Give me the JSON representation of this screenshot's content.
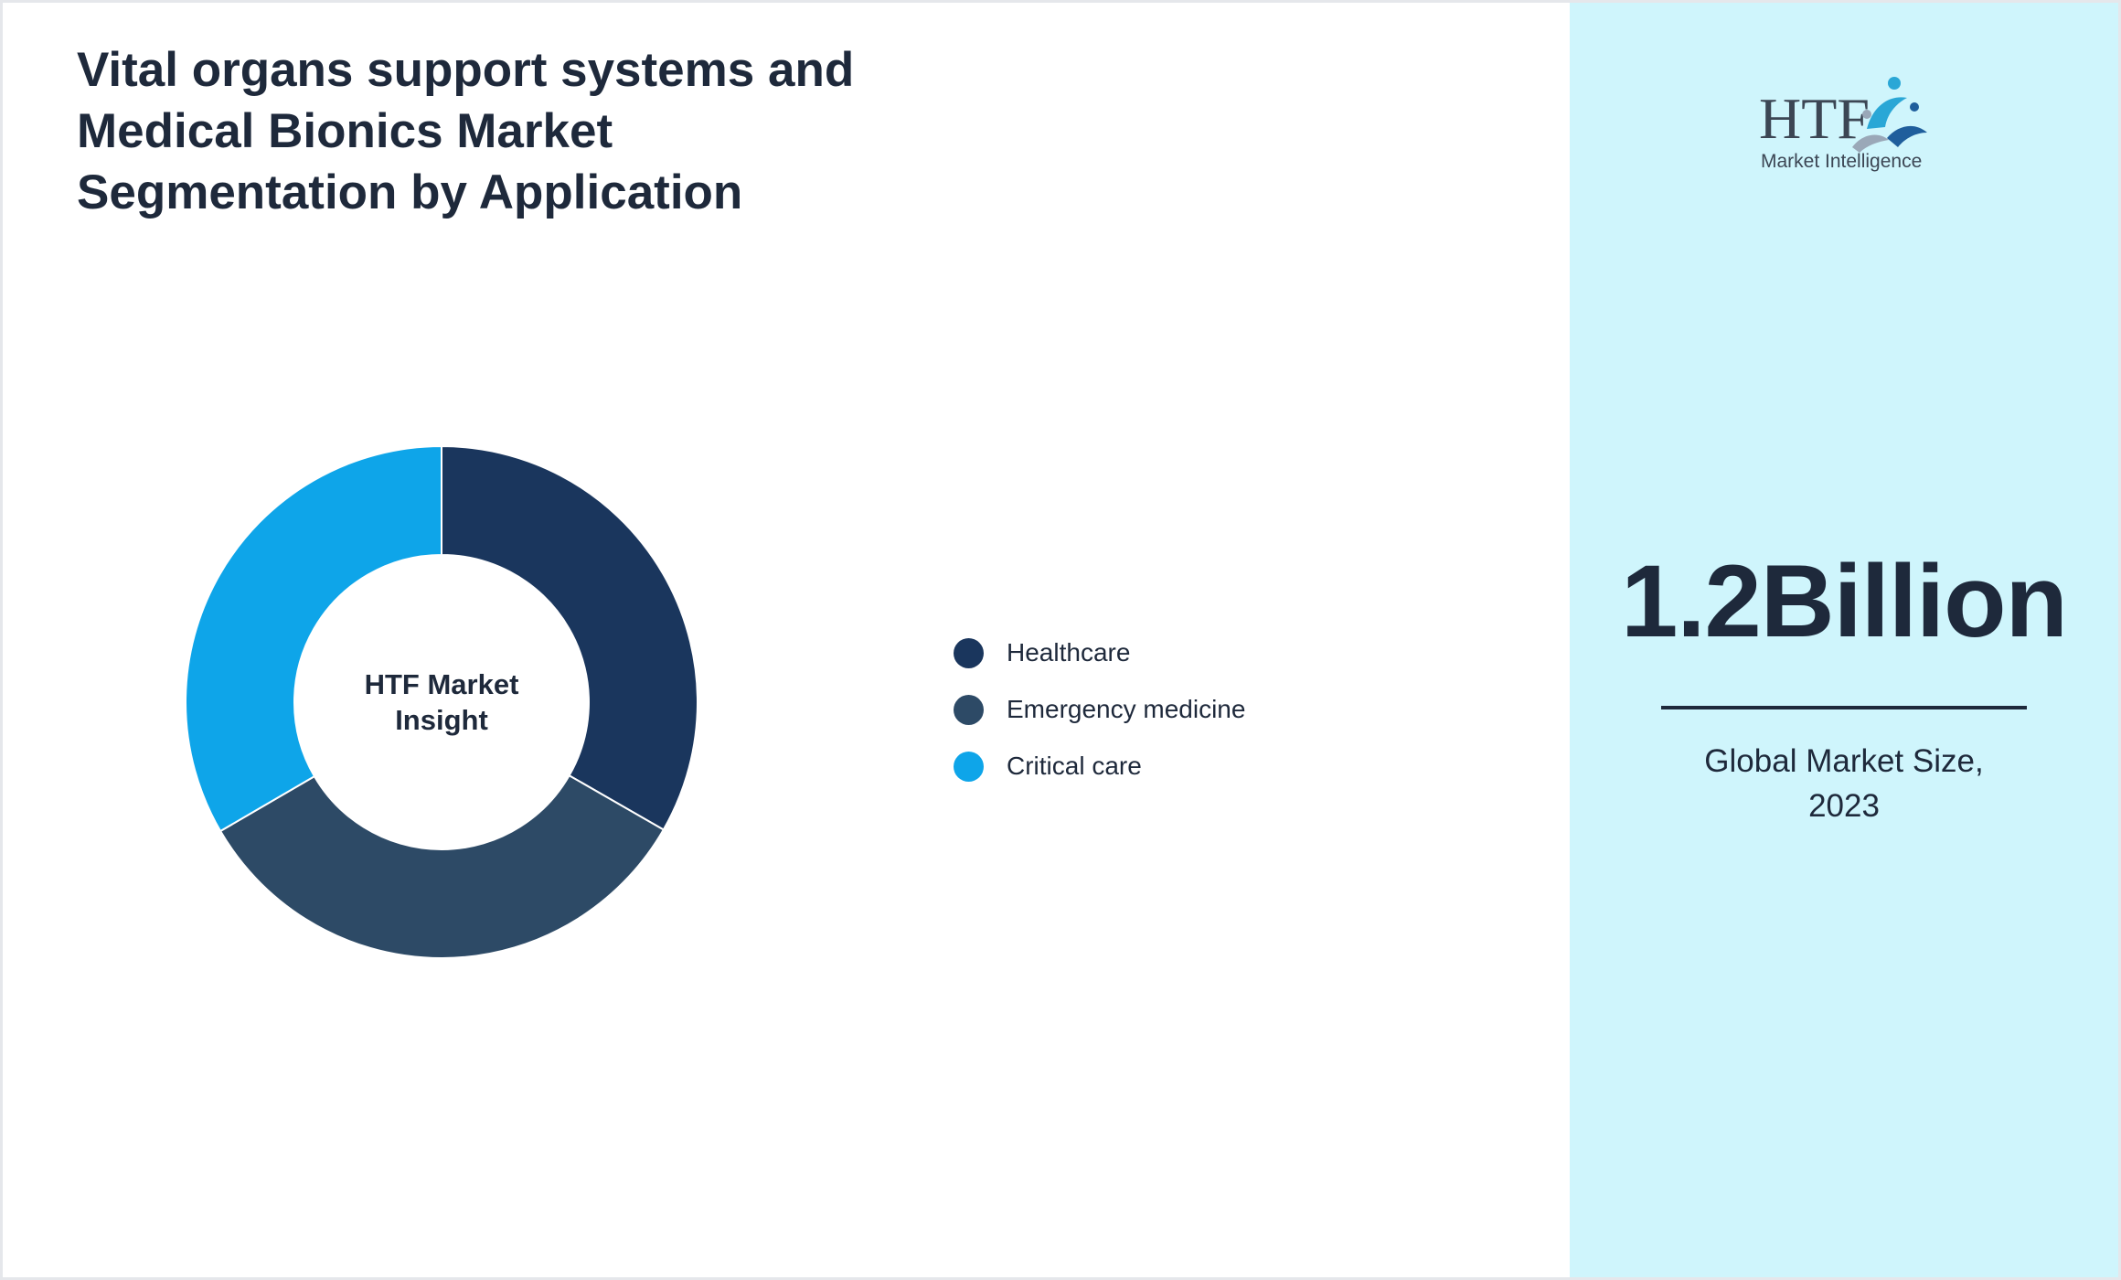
{
  "title_lines": [
    "Vital organs support systems and",
    "Medical Bionics Market",
    "Segmentation by Application"
  ],
  "chart_data": {
    "type": "pie",
    "variant": "donut",
    "title": "Vital organs support systems and Medical Bionics Market Segmentation by Application",
    "center_label_lines": [
      "HTF Market",
      "Insight"
    ],
    "categories": [
      "Healthcare",
      "Emergency medicine",
      "Critical care"
    ],
    "values": [
      33.3,
      33.3,
      33.4
    ],
    "colors": [
      "#1a365d",
      "#2d4a66",
      "#0ea5e9"
    ],
    "legend_position": "right"
  },
  "logo": {
    "main": "HTF",
    "sub": "Market Intelligence",
    "colors": [
      "#3c4654",
      "#2aa7d6",
      "#1f5e9c"
    ]
  },
  "stat": {
    "value": "1.2Billion",
    "caption_lines": [
      "Global Market Size,",
      "2023"
    ]
  },
  "colors": {
    "side_panel": "#cff5fc",
    "text": "#1e293b"
  }
}
